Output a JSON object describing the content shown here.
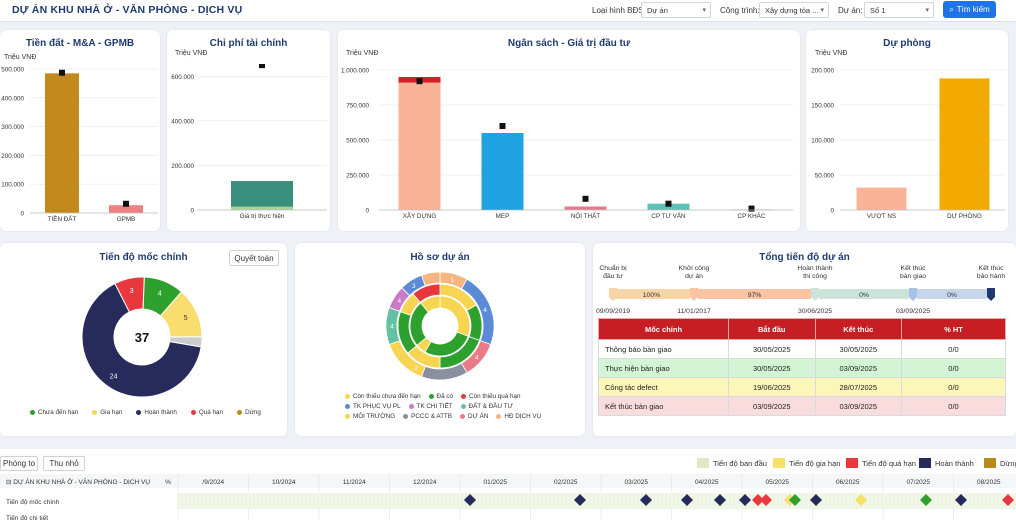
{
  "app_title": "DỰ ÁN KHU NHÀ Ở - VĂN PHÒNG - DỊCH VỤ",
  "filters": [
    {
      "label": "Loại hình BĐS:",
      "value": "Dự án"
    },
    {
      "label": "Công trình:",
      "value": "Xây dựng tòa ..."
    },
    {
      "label": "Dự án:",
      "value": "Số 1"
    }
  ],
  "search_label": "Tìm kiếm",
  "card_tien_dat": {
    "title": "Tiền đất - M&A - GPMB",
    "unit": "Triệu VNĐ",
    "chart_data": {
      "type": "bar",
      "categories": [
        "TIỀN ĐẤT",
        "GPMB"
      ],
      "values": [
        485000,
        27000
      ],
      "markers": [
        487000,
        32000
      ],
      "ylim": [
        0,
        500000
      ],
      "yticks": [
        "0",
        "100.000",
        "200.000",
        "300.000",
        "400.000",
        "500.000"
      ],
      "colors": [
        "#c28a1c",
        "#f08080"
      ]
    }
  },
  "card_chi_phi": {
    "title": "Chi phí tài chính",
    "unit": "Triệu VNĐ",
    "chart_data": {
      "type": "bar",
      "categories": [
        "Giá trị thực hiện"
      ],
      "values": [
        130000
      ],
      "markers": [
        650000
      ],
      "ylim": [
        0,
        700000
      ],
      "yticks": [
        "0",
        "200.000",
        "400.000",
        "600.000"
      ],
      "colors": [
        "#3a8f7c"
      ]
    }
  },
  "card_ngan_sach": {
    "title": "Ngân sách - Giá trị đầu tư",
    "unit": "Triệu VNĐ",
    "chart_data": {
      "type": "bar",
      "categories": [
        "XÂY DỰNG",
        "MEP",
        "NỘI THẤT",
        "CP TƯ VẤN",
        "CP KHÁC"
      ],
      "values": [
        950000,
        550000,
        25000,
        45000,
        5000
      ],
      "markers": [
        920000,
        600000,
        80000,
        45000,
        10000
      ],
      "ylim": [
        0,
        1000000
      ],
      "yticks": [
        "0",
        "250.000",
        "500.000",
        "750.000",
        "1.000.000"
      ],
      "colors": [
        "#f9b497",
        "#1ea2e2",
        "#e37c8a",
        "#5fc0b8",
        "#cccccc"
      ]
    }
  },
  "card_du_phong": {
    "title": "Dự phòng",
    "unit": "Triệu VNĐ",
    "chart_data": {
      "type": "bar",
      "categories": [
        "VƯỢT NS",
        "DỰ PHÒNG"
      ],
      "values": [
        32000,
        188000
      ],
      "ylim": [
        0,
        200000
      ],
      "yticks": [
        "0",
        "50.000",
        "100.000",
        "150.000",
        "200.000"
      ],
      "colors": [
        "#f9b497",
        "#f2a900"
      ]
    }
  },
  "card_moc": {
    "title": "Tiến độ mốc chính",
    "button": "Quyết toán",
    "center": "37",
    "chart_data": {
      "type": "pie",
      "values": [
        3,
        4,
        5,
        24,
        1
      ],
      "labels": [
        "3",
        "4",
        "5",
        "24",
        ""
      ],
      "colors": [
        "#e8383d",
        "#2ea02e",
        "#f9dd6e",
        "#262b5b",
        "#cccccc"
      ]
    },
    "legend": [
      {
        "label": "Chưa đến hạn",
        "color": "#2ea02e"
      },
      {
        "label": "Gia hạn",
        "color": "#f7d552"
      },
      {
        "label": "Hoàn thành",
        "color": "#262b5b"
      },
      {
        "label": "Quá hạn",
        "color": "#e8383d"
      },
      {
        "label": "Dừng",
        "color": "#b88a1a"
      }
    ]
  },
  "card_hoso": {
    "title": "Hồ sơ dự án",
    "legend": [
      [
        {
          "label": "Còn thiếu chưa đến hạn",
          "color": "#f7d552"
        },
        {
          "label": "Đã có",
          "color": "#2ea02e"
        },
        {
          "label": "Còn thiếu quá hạn",
          "color": "#e8383d"
        }
      ],
      [
        {
          "label": "TK PHỤC VỤ PL",
          "color": "#5b8bd6"
        },
        {
          "label": "TK CHI TIẾT",
          "color": "#cc79c8"
        },
        {
          "label": "ĐẤT & ĐẦU TƯ",
          "color": "#63c2a4"
        }
      ],
      [
        {
          "label": "MÔI TRƯỜNG",
          "color": "#f7d552"
        },
        {
          "label": "PCCC & ATTB",
          "color": "#8a8fa0"
        },
        {
          "label": "DỰ ÁN",
          "color": "#e97b89"
        },
        {
          "label": "HĐ DỊCH VỤ",
          "color": "#f4b67e"
        }
      ]
    ],
    "ring_labels": [
      "1",
      "4",
      "4",
      "2",
      "4",
      "4",
      "3"
    ]
  },
  "card_tong": {
    "title": "Tổng tiến độ dự án",
    "stages": [
      "Chuẩn bị đầu tư",
      "Khởi công dự án",
      "Hoàn thành thi công",
      "Kết thúc bàn giao",
      "Kết thúc bảo hành"
    ],
    "bars": [
      {
        "label": "100%",
        "color": "#f8d4a9"
      },
      {
        "label": "97%",
        "color": "#f9c3a4"
      },
      {
        "label": "0%",
        "color": "#cbe3d8"
      },
      {
        "label": "0%",
        "color": "#c7d5ea"
      }
    ],
    "dates": [
      "09/09/2019",
      "11/01/2017",
      "30/06/2025",
      "03/09/2025"
    ],
    "table_headers": [
      "Mốc chính",
      "Bắt đầu",
      "Kết thúc",
      "% HT"
    ],
    "rows": [
      {
        "name": "Thông báo bàn giao",
        "start": "30/05/2025",
        "end": "30/05/2025",
        "pct": "0/0",
        "bg": "#ffffff"
      },
      {
        "name": "Thực hiện bàn giao",
        "start": "30/05/2025",
        "end": "03/09/2025",
        "pct": "0/0",
        "bg": "#d4f5d4"
      },
      {
        "name": "Công tác defect",
        "start": "19/06/2025",
        "end": "28/07/2025",
        "pct": "0/0",
        "bg": "#fdf6b9"
      },
      {
        "name": "Kết thúc bàn giao",
        "start": "03/09/2025",
        "end": "03/09/2025",
        "pct": "0/0",
        "bg": "#fbdcdc"
      }
    ]
  },
  "gantt": {
    "btn_zoom_in": "Phóng to",
    "btn_zoom_out": "Thu nhỏ",
    "legend": [
      {
        "label": "Tiến độ ban đầu",
        "color": "#dfe8c6"
      },
      {
        "label": "Tiến độ gia hạn",
        "color": "#f7e06a"
      },
      {
        "label": "Tiến độ quá hạn",
        "color": "#e8383d"
      },
      {
        "label": "Hoàn thành",
        "color": "#262b5b"
      },
      {
        "label": "Dừng",
        "color": "#b88a1a"
      }
    ],
    "root_label": "DỰ ÁN KHU NHÀ Ở - VĂN PHÒNG - DỊCH VỤ",
    "pct_header": "%",
    "months": [
      "/9/2024",
      "10/2024",
      "11/2024",
      "12/2024",
      "01/2025",
      "02/2025",
      "03/2025",
      "04/2025",
      "05/2025",
      "06/2025",
      "07/2025",
      "08/2025"
    ],
    "rows": [
      "Tiến độ mốc chính",
      "Tiến độ chi tiết"
    ]
  }
}
